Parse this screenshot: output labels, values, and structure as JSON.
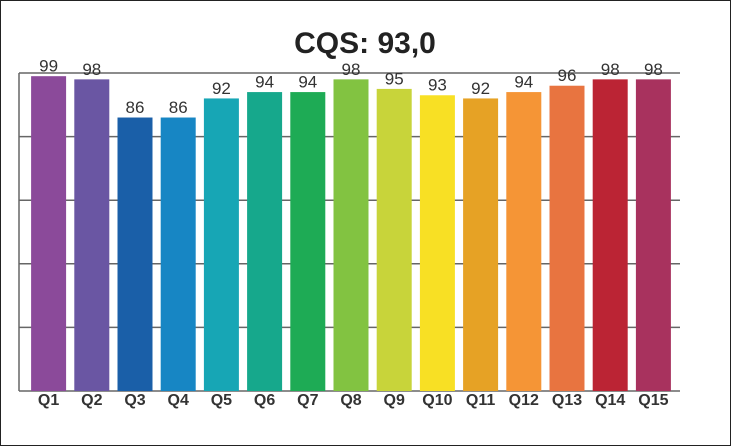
{
  "chart_data": {
    "type": "bar",
    "title": "CQS: 93,0",
    "categories": [
      "Q1",
      "Q2",
      "Q3",
      "Q4",
      "Q5",
      "Q6",
      "Q7",
      "Q8",
      "Q9",
      "Q10",
      "Q11",
      "Q12",
      "Q13",
      "Q14",
      "Q15"
    ],
    "values": [
      99,
      98,
      86,
      86,
      92,
      94,
      94,
      98,
      95,
      93,
      92,
      94,
      96,
      98,
      98
    ],
    "colors": [
      "#8b4a9a",
      "#6a56a3",
      "#1a5fa8",
      "#1786c4",
      "#17a6b5",
      "#16a88c",
      "#1eab55",
      "#82c341",
      "#c8d43a",
      "#f8e024",
      "#e6a225",
      "#f59536",
      "#e87440",
      "#bb2434",
      "#a8325e"
    ],
    "ylim": [
      0,
      100
    ],
    "yticks": [
      0,
      20,
      40,
      60,
      80,
      100
    ],
    "grid": true
  }
}
